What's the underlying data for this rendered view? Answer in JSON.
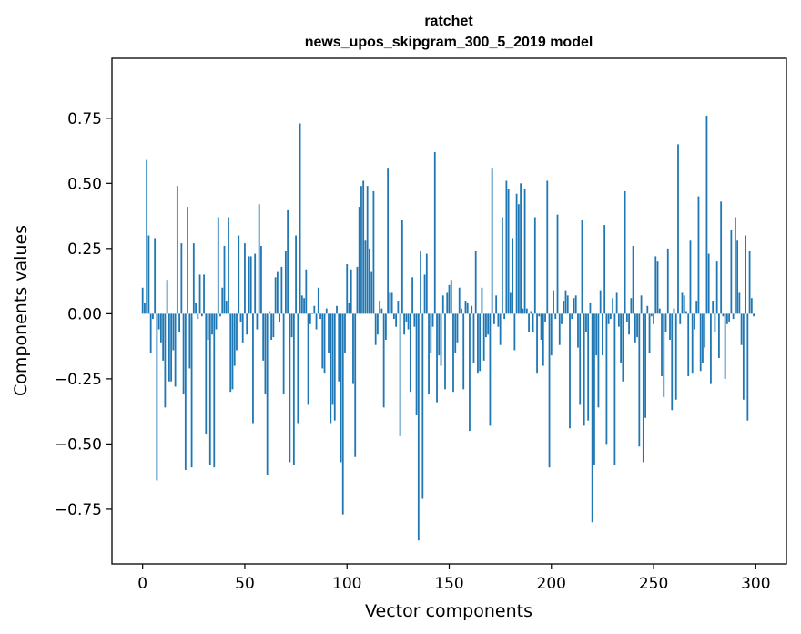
{
  "chart_data": {
    "type": "bar",
    "title": "ratchet",
    "subtitle": "news_upos_skipgram_300_5_2019 model",
    "xlabel": "Vector components",
    "ylabel": "Components values",
    "xlim": [
      -15,
      315
    ],
    "ylim": [
      -0.96,
      0.98
    ],
    "x_ticks": [
      {
        "value": 0,
        "label": "0"
      },
      {
        "value": 50,
        "label": "50"
      },
      {
        "value": 100,
        "label": "100"
      },
      {
        "value": 150,
        "label": "150"
      },
      {
        "value": 200,
        "label": "200"
      },
      {
        "value": 250,
        "label": "250"
      },
      {
        "value": 300,
        "label": "300"
      }
    ],
    "y_ticks": [
      {
        "value": -0.75,
        "label": "−0.75"
      },
      {
        "value": -0.5,
        "label": "−0.50"
      },
      {
        "value": -0.25,
        "label": "−0.25"
      },
      {
        "value": 0,
        "label": "0.00"
      },
      {
        "value": 0.25,
        "label": "0.25"
      },
      {
        "value": 0.5,
        "label": "0.50"
      },
      {
        "value": 0.75,
        "label": "0.75"
      }
    ],
    "grid": false,
    "bar_color": "#1f77b4",
    "values": [
      0.1,
      0.04,
      0.59,
      0.3,
      -0.15,
      -0.02,
      0.29,
      -0.64,
      -0.06,
      -0.11,
      -0.18,
      -0.36,
      0.13,
      -0.26,
      -0.26,
      -0.14,
      -0.28,
      0.49,
      -0.07,
      0.27,
      -0.31,
      -0.6,
      0.41,
      -0.21,
      -0.59,
      0.27,
      0.04,
      -0.02,
      0.15,
      -0.01,
      0.15,
      -0.46,
      -0.1,
      -0.58,
      -0.08,
      -0.59,
      -0.06,
      0.37,
      -0.01,
      0.1,
      0.26,
      0.05,
      0.37,
      -0.3,
      -0.29,
      -0.2,
      -0.14,
      0.3,
      -0.03,
      -0.11,
      0.27,
      -0.08,
      0.22,
      0.22,
      -0.42,
      0.23,
      -0.06,
      0.42,
      0.26,
      -0.18,
      -0.31,
      -0.62,
      0.01,
      -0.1,
      -0.09,
      0.14,
      0.16,
      -0.03,
      0.18,
      -0.31,
      0.24,
      0.4,
      -0.57,
      -0.09,
      -0.58,
      0.3,
      -0.42,
      0.73,
      0.07,
      0.06,
      0.17,
      -0.35,
      -0.04,
      0.0,
      0.03,
      -0.06,
      0.1,
      -0.02,
      -0.21,
      -0.23,
      0.02,
      -0.15,
      -0.42,
      -0.35,
      -0.41,
      0.03,
      -0.26,
      -0.57,
      -0.77,
      -0.15,
      0.19,
      0.04,
      0.17,
      -0.27,
      -0.55,
      0.18,
      0.41,
      0.49,
      0.51,
      0.28,
      0.49,
      0.25,
      0.16,
      0.47,
      -0.12,
      -0.08,
      0.05,
      0.02,
      -0.36,
      -0.1,
      0.56,
      0.08,
      0.08,
      -0.02,
      -0.05,
      0.05,
      -0.47,
      0.36,
      -0.08,
      -0.03,
      -0.06,
      -0.3,
      0.14,
      -0.05,
      -0.39,
      -0.87,
      0.24,
      -0.71,
      0.15,
      0.23,
      -0.31,
      -0.15,
      -0.05,
      0.62,
      -0.34,
      -0.16,
      -0.2,
      0.07,
      -0.29,
      0.08,
      0.11,
      0.13,
      -0.3,
      -0.15,
      -0.11,
      0.1,
      0.02,
      -0.29,
      0.05,
      0.04,
      -0.45,
      0.03,
      -0.19,
      0.24,
      -0.23,
      -0.22,
      0.1,
      -0.18,
      -0.09,
      -0.08,
      -0.43,
      0.56,
      -0.04,
      0.07,
      -0.05,
      -0.12,
      0.37,
      -0.02,
      0.51,
      0.48,
      0.08,
      0.29,
      -0.14,
      0.46,
      0.42,
      0.5,
      0.02,
      0.48,
      0.02,
      -0.07,
      0.01,
      -0.07,
      0.37,
      -0.23,
      -0.01,
      -0.1,
      -0.2,
      -0.03,
      0.51,
      -0.59,
      -0.16,
      0.09,
      -0.02,
      0.38,
      -0.12,
      -0.04,
      0.05,
      0.09,
      0.07,
      -0.44,
      -0.02,
      0.06,
      0.07,
      -0.13,
      -0.35,
      0.36,
      -0.43,
      -0.07,
      -0.41,
      0.04,
      -0.8,
      -0.58,
      -0.16,
      -0.36,
      0.09,
      -0.16,
      0.34,
      -0.5,
      -0.04,
      -0.02,
      0.06,
      -0.58,
      0.08,
      -0.05,
      -0.19,
      -0.26,
      0.47,
      -0.03,
      -0.08,
      0.06,
      0.26,
      -0.11,
      -0.09,
      -0.51,
      0.07,
      -0.57,
      -0.4,
      0.03,
      -0.15,
      -0.01,
      -0.04,
      0.22,
      0.2,
      0.02,
      -0.24,
      -0.32,
      -0.07,
      0.25,
      -0.1,
      -0.37,
      0.02,
      -0.33,
      0.65,
      -0.04,
      0.08,
      0.07,
      0.01,
      -0.24,
      0.28,
      -0.23,
      -0.06,
      0.05,
      0.45,
      -0.22,
      -0.19,
      -0.13,
      0.76,
      0.23,
      -0.27,
      0.05,
      -0.07,
      0.2,
      -0.17,
      0.43,
      -0.01,
      -0.25,
      -0.04,
      -0.03,
      0.32,
      -0.02,
      0.37,
      0.28,
      0.08,
      -0.12,
      -0.33,
      0.3,
      -0.41,
      0.24,
      0.06,
      -0.01
    ]
  }
}
